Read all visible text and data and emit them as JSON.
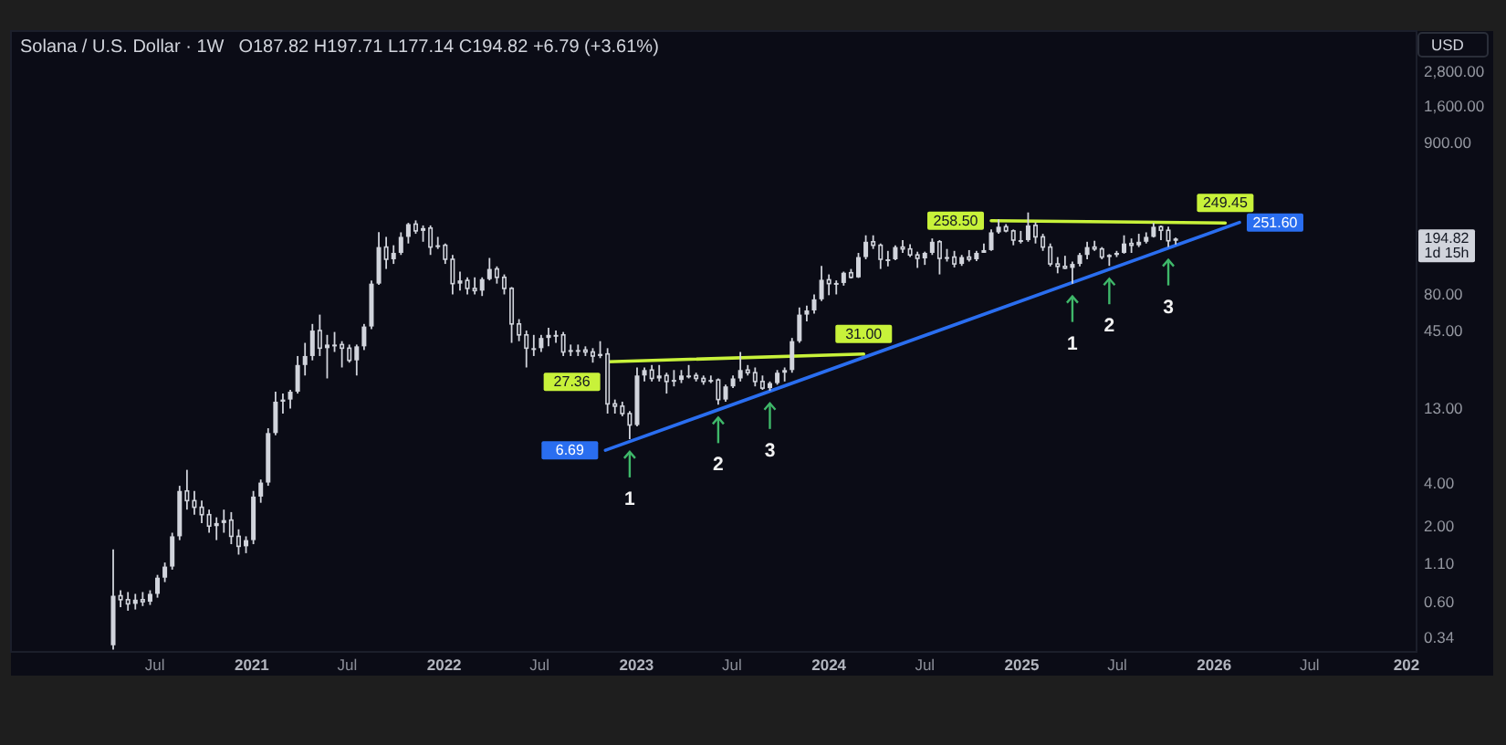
{
  "chart_data": {
    "type": "candlestick",
    "title": "Solana / U.S. Dollar · 1W",
    "subtitle": "O187.82 H197.71 L177.14 C194.82 +6.79 (+3.61%)",
    "ylabel": "USD",
    "color": "#d1d4dc",
    "log": true,
    "xlim": [
      "2019-10-02",
      "2027-01-20"
    ],
    "xticks": [
      {
        "value": "2020-07-01",
        "label": "Jul"
      },
      {
        "value": "2021-01-01",
        "label": "2021"
      },
      {
        "value": "2021-07-01",
        "label": "Jul"
      },
      {
        "value": "2022-01-01",
        "label": "2022"
      },
      {
        "value": "2022-07-01",
        "label": "Jul"
      },
      {
        "value": "2023-01-01",
        "label": "2023"
      },
      {
        "value": "2023-07-01",
        "label": "Jul"
      },
      {
        "value": "2024-01-01",
        "label": "2024"
      },
      {
        "value": "2024-07-01",
        "label": "Jul"
      },
      {
        "value": "2025-01-01",
        "label": "2025"
      },
      {
        "value": "2025-07-01",
        "label": "Jul"
      },
      {
        "value": "2026-01-01",
        "label": "2026"
      },
      {
        "value": "2026-07-01",
        "label": "Jul"
      },
      {
        "value": "2027-01-01",
        "label": "202"
      }
    ],
    "ylim": [
      0.27,
      5300
    ],
    "yticks": [
      0.34,
      {
        "value": 0.6,
        "label": "0.60"
      },
      {
        "value": 1.1,
        "label": "1.10"
      },
      {
        "value": 2,
        "label": "2.00"
      },
      {
        "value": 4,
        "label": "4.00"
      },
      {
        "value": 13,
        "label": "13.00"
      },
      {
        "value": 45,
        "label": "45.00"
      },
      {
        "value": 80,
        "label": "80.00"
      },
      {
        "value": 900,
        "label": "900.00"
      },
      {
        "value": 1600,
        "label": "1,600.00"
      },
      {
        "value": 2800,
        "label": "2,800.00"
      }
    ],
    "x": [
      "2020-04-13",
      "2020-04-27",
      "2020-05-11",
      "2020-05-25",
      "2020-06-08",
      "2020-06-22",
      "2020-07-06",
      "2020-07-20",
      "2020-08-03",
      "2020-08-17",
      "2020-08-31",
      "2020-09-14",
      "2020-09-28",
      "2020-10-12",
      "2020-10-26",
      "2020-11-09",
      "2020-11-23",
      "2020-12-07",
      "2020-12-21",
      "2021-01-04",
      "2021-01-18",
      "2021-02-01",
      "2021-02-15",
      "2021-03-01",
      "2021-03-15",
      "2021-03-29",
      "2021-04-12",
      "2021-04-26",
      "2021-05-10",
      "2021-05-24",
      "2021-06-07",
      "2021-06-21",
      "2021-07-05",
      "2021-07-19",
      "2021-08-02",
      "2021-08-16",
      "2021-08-30",
      "2021-09-13",
      "2021-09-27",
      "2021-10-11",
      "2021-10-25",
      "2021-11-08",
      "2021-11-22",
      "2021-12-06",
      "2021-12-20",
      "2022-01-03",
      "2022-01-17",
      "2022-01-31",
      "2022-02-14",
      "2022-02-28",
      "2022-03-14",
      "2022-03-28",
      "2022-04-11",
      "2022-04-25",
      "2022-05-09",
      "2022-05-23",
      "2022-06-06",
      "2022-06-20",
      "2022-07-04",
      "2022-07-18",
      "2022-08-01",
      "2022-08-15",
      "2022-08-29",
      "2022-09-12",
      "2022-09-26",
      "2022-10-10",
      "2022-10-24",
      "2022-11-07",
      "2022-11-21",
      "2022-12-05",
      "2022-12-19",
      "2023-01-02",
      "2023-01-16",
      "2023-01-30",
      "2023-02-13",
      "2023-02-27",
      "2023-03-13",
      "2023-03-27",
      "2023-04-10",
      "2023-04-24",
      "2023-05-08",
      "2023-05-22",
      "2023-06-05",
      "2023-06-19",
      "2023-07-03",
      "2023-07-17",
      "2023-07-31",
      "2023-08-14",
      "2023-08-28",
      "2023-09-11",
      "2023-09-25",
      "2023-10-09",
      "2023-10-23",
      "2023-11-06",
      "2023-11-20",
      "2023-12-04",
      "2023-12-18",
      "2024-01-01",
      "2024-01-15",
      "2024-01-29",
      "2024-02-12",
      "2024-02-26",
      "2024-03-11",
      "2024-03-25",
      "2024-04-08",
      "2024-04-22",
      "2024-05-06",
      "2024-05-20",
      "2024-06-03",
      "2024-06-17",
      "2024-07-01",
      "2024-07-15",
      "2024-07-29",
      "2024-08-12",
      "2024-08-26",
      "2024-09-09",
      "2024-09-23",
      "2024-10-07",
      "2024-10-21",
      "2024-11-04",
      "2024-11-18",
      "2024-12-02",
      "2024-12-16",
      "2024-12-30",
      "2025-01-13",
      "2025-01-27",
      "2025-02-10",
      "2025-02-24",
      "2025-03-10",
      "2025-03-24",
      "2025-04-07",
      "2025-04-21",
      "2025-05-05",
      "2025-05-19",
      "2025-06-02",
      "2025-06-16",
      "2025-06-30",
      "2025-07-14",
      "2025-07-28",
      "2025-08-11",
      "2025-08-25",
      "2025-09-08",
      "2025-09-22",
      "2025-10-06",
      "2025-10-20"
    ],
    "ohlc": [
      [
        0.3,
        1.38,
        0.28,
        0.66
      ],
      [
        0.66,
        0.72,
        0.55,
        0.62
      ],
      [
        0.62,
        0.7,
        0.52,
        0.58
      ],
      [
        0.58,
        0.68,
        0.53,
        0.62
      ],
      [
        0.62,
        0.7,
        0.56,
        0.6
      ],
      [
        0.6,
        0.72,
        0.57,
        0.68
      ],
      [
        0.68,
        0.92,
        0.64,
        0.88
      ],
      [
        0.88,
        1.12,
        0.82,
        1.05
      ],
      [
        1.05,
        1.8,
        1.0,
        1.7
      ],
      [
        1.7,
        3.8,
        1.6,
        3.5
      ],
      [
        3.5,
        4.9,
        2.6,
        3.0
      ],
      [
        3.0,
        3.5,
        2.4,
        2.7
      ],
      [
        2.7,
        3.0,
        2.1,
        2.4
      ],
      [
        2.4,
        2.6,
        1.8,
        2.0
      ],
      [
        2.0,
        2.3,
        1.6,
        2.1
      ],
      [
        2.1,
        2.6,
        1.8,
        2.2
      ],
      [
        2.2,
        2.5,
        1.5,
        1.7
      ],
      [
        1.7,
        1.9,
        1.27,
        1.45
      ],
      [
        1.45,
        1.7,
        1.3,
        1.6
      ],
      [
        1.6,
        3.5,
        1.5,
        3.2
      ],
      [
        3.2,
        4.2,
        2.9,
        4.0
      ],
      [
        4.0,
        9.5,
        3.8,
        8.8
      ],
      [
        8.8,
        17.0,
        8.5,
        14.5
      ],
      [
        14.5,
        16.5,
        12.0,
        15.0
      ],
      [
        15.0,
        17.5,
        13.0,
        17.0
      ],
      [
        17.0,
        30.0,
        16.5,
        26.0
      ],
      [
        26.0,
        37.0,
        22.0,
        30.0
      ],
      [
        30.0,
        50.0,
        28.0,
        45.0
      ],
      [
        45.0,
        58.0,
        30.0,
        34.0
      ],
      [
        34.0,
        42.0,
        21.0,
        36.0
      ],
      [
        36.0,
        44.0,
        32.0,
        36.0
      ],
      [
        36.0,
        38.0,
        25.0,
        34.0
      ],
      [
        34.0,
        36.0,
        27.0,
        28.0
      ],
      [
        28.0,
        36.0,
        22.0,
        35.0
      ],
      [
        35.0,
        50.0,
        33.0,
        48.0
      ],
      [
        48,
        100,
        46,
        95
      ],
      [
        95,
        216,
        93,
        170
      ],
      [
        170,
        200,
        120,
        140
      ],
      [
        140,
        175,
        130,
        155
      ],
      [
        155,
        215,
        150,
        200
      ],
      [
        200,
        250,
        180,
        245
      ],
      [
        245,
        260,
        210,
        220
      ],
      [
        220,
        240,
        185,
        230
      ],
      [
        230,
        240,
        150,
        170
      ],
      [
        170,
        200,
        165,
        175
      ],
      [
        175,
        180,
        130,
        140
      ],
      [
        140,
        150,
        80,
        95
      ],
      [
        95,
        115,
        85,
        100
      ],
      [
        100,
        105,
        80,
        88
      ],
      [
        88,
        105,
        80,
        85
      ],
      [
        85,
        105,
        78,
        102
      ],
      [
        102,
        143,
        100,
        120
      ],
      [
        120,
        125,
        95,
        105
      ],
      [
        105,
        110,
        80,
        88
      ],
      [
        88,
        90,
        37,
        50
      ],
      [
        50,
        54,
        38,
        42
      ],
      [
        42,
        45,
        25,
        34
      ],
      [
        34,
        42,
        30,
        34
      ],
      [
        34,
        42,
        32,
        40
      ],
      [
        40,
        47,
        35,
        42
      ],
      [
        42,
        45,
        37,
        42
      ],
      [
        42,
        44,
        30,
        32
      ],
      [
        32,
        36,
        30,
        33
      ],
      [
        33,
        36,
        30,
        33
      ],
      [
        33,
        35,
        30,
        32
      ],
      [
        32,
        34,
        27,
        30
      ],
      [
        30,
        38,
        29,
        31
      ],
      [
        31,
        34,
        12,
        14
      ],
      [
        14,
        15,
        12,
        13.5
      ],
      [
        13.5,
        14.5,
        11.5,
        12
      ],
      [
        12,
        12.5,
        8.0,
        10
      ],
      [
        10,
        25,
        9.8,
        22
      ],
      [
        22,
        25,
        20,
        24
      ],
      [
        24,
        26,
        20,
        21
      ],
      [
        21,
        26,
        20,
        22
      ],
      [
        22,
        23,
        16.5,
        20
      ],
      [
        20,
        24,
        18.5,
        20.5
      ],
      [
        20.5,
        24,
        19.5,
        22
      ],
      [
        22,
        26,
        21,
        22
      ],
      [
        22,
        23,
        20,
        21
      ],
      [
        21,
        22,
        19,
        20
      ],
      [
        20,
        22,
        19.5,
        20.5
      ],
      [
        20.5,
        21,
        13.8,
        15
      ],
      [
        15,
        19,
        14.5,
        18.5
      ],
      [
        18.5,
        22,
        18,
        21
      ],
      [
        21,
        32,
        20,
        24
      ],
      [
        24,
        26,
        22,
        23
      ],
      [
        23,
        25,
        18.5,
        20
      ],
      [
        20,
        22,
        17.5,
        18
      ],
      [
        18,
        20,
        17.3,
        19.5
      ],
      [
        19.5,
        24,
        19,
        23
      ],
      [
        23,
        25,
        20,
        24
      ],
      [
        24,
        40,
        23,
        38
      ],
      [
        38,
        65,
        37,
        58
      ],
      [
        58,
        67,
        52,
        62
      ],
      [
        62,
        80,
        59,
        74
      ],
      [
        74,
        126,
        72,
        101
      ],
      [
        101,
        110,
        79,
        95
      ],
      [
        95,
        100,
        80,
        96
      ],
      [
        96,
        115,
        92,
        113
      ],
      [
        113,
        120,
        103,
        105
      ],
      [
        105,
        155,
        104,
        145
      ],
      [
        145,
        205,
        140,
        185
      ],
      [
        185,
        205,
        165,
        175
      ],
      [
        175,
        180,
        120,
        140
      ],
      [
        140,
        160,
        125,
        140
      ],
      [
        140,
        175,
        138,
        170
      ],
      [
        170,
        190,
        155,
        165
      ],
      [
        165,
        178,
        145,
        150
      ],
      [
        150,
        158,
        122,
        142
      ],
      [
        142,
        158,
        128,
        155
      ],
      [
        155,
        195,
        150,
        185
      ],
      [
        185,
        190,
        110,
        142
      ],
      [
        142,
        165,
        135,
        145
      ],
      [
        145,
        160,
        123,
        130
      ],
      [
        130,
        150,
        126,
        145
      ],
      [
        145,
        162,
        135,
        140
      ],
      [
        140,
        160,
        136,
        155
      ],
      [
        155,
        180,
        155,
        162
      ],
      [
        162,
        225,
        160,
        215
      ],
      [
        215,
        264,
        210,
        235
      ],
      [
        235,
        245,
        215,
        220
      ],
      [
        220,
        225,
        175,
        190
      ],
      [
        190,
        220,
        180,
        190
      ],
      [
        190,
        295,
        185,
        240
      ],
      [
        240,
        252,
        180,
        200
      ],
      [
        200,
        210,
        160,
        170
      ],
      [
        170,
        180,
        125,
        130
      ],
      [
        130,
        145,
        112,
        125
      ],
      [
        125,
        148,
        120,
        122
      ],
      [
        122,
        135,
        95,
        130
      ],
      [
        130,
        155,
        125,
        150
      ],
      [
        150,
        185,
        140,
        170
      ],
      [
        170,
        188,
        160,
        165
      ],
      [
        165,
        170,
        140,
        145
      ],
      [
        145,
        152,
        126,
        150
      ],
      [
        150,
        160,
        145,
        155
      ],
      [
        155,
        205,
        153,
        180
      ],
      [
        180,
        195,
        155,
        175
      ],
      [
        175,
        210,
        170,
        185
      ],
      [
        185,
        215,
        180,
        200
      ],
      [
        200,
        250,
        198,
        235
      ],
      [
        235,
        240,
        190,
        222
      ],
      [
        222,
        235,
        170,
        188
      ],
      [
        187.82,
        197.71,
        177.14,
        194.82
      ]
    ],
    "series": [
      {
        "type": "line",
        "color": "#2a6ef0",
        "x": [
          "2022-11-03",
          "2026-02-18"
        ],
        "values": [
          6.69,
          251.6
        ],
        "value_labels": [
          "6.69",
          "251.60"
        ]
      },
      {
        "type": "line",
        "color": "#c8f23a",
        "x": [
          "2022-11-07",
          "2024-03-07"
        ],
        "values": [
          27.36,
          31.0
        ],
        "value_labels": [
          "27.36",
          "31.00"
        ]
      },
      {
        "type": "line",
        "color": "#c8f23a",
        "x": [
          "2024-11-04",
          "2026-01-22"
        ],
        "values": [
          258.5,
          249.45
        ],
        "value_labels": [
          "258.50",
          "249.45"
        ]
      }
    ],
    "annotations": [
      {
        "text": "1",
        "x": "2022-12-19",
        "y": 8.0
      },
      {
        "text": "2",
        "x": "2023-06-05",
        "y": 13.8
      },
      {
        "text": "3",
        "x": "2023-09-11",
        "y": 17.3
      },
      {
        "text": "1",
        "x": "2025-04-07",
        "y": 95
      },
      {
        "text": "2",
        "x": "2025-06-16",
        "y": 126
      },
      {
        "text": "3",
        "x": "2025-10-06",
        "y": 170
      },
      "194.82",
      "1d 15h"
    ]
  }
}
